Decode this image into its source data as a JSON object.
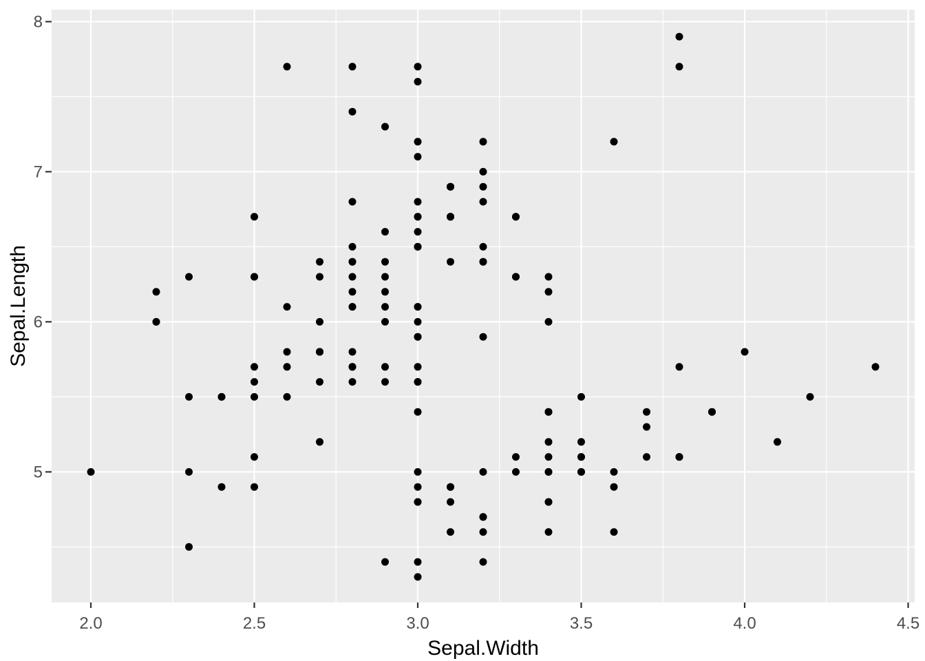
{
  "chart_data": {
    "type": "scatter",
    "title": "",
    "xlabel": "Sepal.Width",
    "ylabel": "Sepal.Length",
    "xlim": [
      1.88,
      4.52
    ],
    "ylim": [
      4.13,
      8.08
    ],
    "x_ticks": [
      2.0,
      2.5,
      3.0,
      3.5,
      4.0,
      4.5
    ],
    "x_tick_labels": [
      "2.0",
      "2.5",
      "3.0",
      "3.5",
      "4.0",
      "4.5"
    ],
    "y_ticks": [
      5,
      6,
      7,
      8
    ],
    "y_tick_labels": [
      "5",
      "6",
      "7",
      "8"
    ],
    "x_minor_ticks": [
      2.25,
      2.75,
      3.25,
      3.75,
      4.25
    ],
    "y_minor_ticks": [
      4.5,
      5.5,
      6.5,
      7.5
    ],
    "grid": true,
    "legend": false,
    "theme": {
      "panel_bg": "#EBEBEB",
      "grid_color": "#FFFFFF",
      "point_color": "#000000",
      "tick_mark_color": "#333333",
      "tick_label_color": "#4D4D4D",
      "axis_title_color": "#000000",
      "outer_bg": "#FFFFFF"
    },
    "points": [
      [
        3.5,
        5.1
      ],
      [
        3.0,
        4.9
      ],
      [
        3.2,
        4.7
      ],
      [
        3.1,
        4.6
      ],
      [
        3.6,
        5.0
      ],
      [
        3.9,
        5.4
      ],
      [
        3.4,
        4.6
      ],
      [
        3.4,
        5.0
      ],
      [
        2.9,
        4.4
      ],
      [
        3.1,
        4.9
      ],
      [
        3.7,
        5.4
      ],
      [
        3.4,
        4.8
      ],
      [
        3.0,
        4.8
      ],
      [
        3.0,
        4.3
      ],
      [
        4.0,
        5.8
      ],
      [
        4.4,
        5.7
      ],
      [
        3.9,
        5.4
      ],
      [
        3.5,
        5.1
      ],
      [
        3.8,
        5.7
      ],
      [
        3.8,
        5.1
      ],
      [
        3.4,
        5.4
      ],
      [
        3.7,
        5.1
      ],
      [
        3.6,
        4.6
      ],
      [
        3.3,
        5.1
      ],
      [
        3.4,
        4.8
      ],
      [
        3.0,
        5.0
      ],
      [
        3.4,
        5.0
      ],
      [
        3.5,
        5.2
      ],
      [
        3.4,
        5.2
      ],
      [
        3.2,
        4.7
      ],
      [
        3.1,
        4.8
      ],
      [
        3.4,
        5.4
      ],
      [
        4.1,
        5.2
      ],
      [
        4.2,
        5.5
      ],
      [
        3.1,
        4.9
      ],
      [
        3.2,
        5.0
      ],
      [
        3.5,
        5.5
      ],
      [
        3.6,
        4.9
      ],
      [
        3.0,
        4.4
      ],
      [
        3.4,
        5.1
      ],
      [
        3.5,
        5.0
      ],
      [
        2.3,
        4.5
      ],
      [
        3.2,
        4.4
      ],
      [
        3.5,
        5.0
      ],
      [
        3.8,
        5.1
      ],
      [
        3.0,
        4.8
      ],
      [
        3.8,
        5.1
      ],
      [
        3.2,
        4.6
      ],
      [
        3.7,
        5.3
      ],
      [
        3.3,
        5.0
      ],
      [
        3.2,
        7.0
      ],
      [
        3.2,
        6.4
      ],
      [
        3.1,
        6.9
      ],
      [
        2.3,
        5.5
      ],
      [
        2.8,
        6.5
      ],
      [
        2.8,
        5.7
      ],
      [
        3.3,
        6.3
      ],
      [
        2.4,
        4.9
      ],
      [
        2.9,
        6.6
      ],
      [
        2.7,
        5.2
      ],
      [
        2.0,
        5.0
      ],
      [
        3.0,
        5.9
      ],
      [
        2.2,
        6.0
      ],
      [
        2.9,
        6.1
      ],
      [
        2.9,
        5.6
      ],
      [
        3.1,
        6.7
      ],
      [
        3.0,
        5.6
      ],
      [
        2.7,
        5.8
      ],
      [
        2.2,
        6.2
      ],
      [
        2.5,
        5.6
      ],
      [
        3.2,
        5.9
      ],
      [
        2.8,
        6.1
      ],
      [
        2.5,
        6.3
      ],
      [
        2.8,
        6.1
      ],
      [
        2.9,
        6.4
      ],
      [
        3.0,
        6.6
      ],
      [
        2.8,
        6.8
      ],
      [
        3.0,
        6.7
      ],
      [
        2.9,
        6.0
      ],
      [
        2.6,
        5.7
      ],
      [
        2.4,
        5.5
      ],
      [
        2.4,
        5.5
      ],
      [
        2.7,
        5.8
      ],
      [
        2.7,
        6.0
      ],
      [
        3.0,
        5.4
      ],
      [
        3.4,
        6.0
      ],
      [
        3.1,
        6.7
      ],
      [
        2.3,
        6.3
      ],
      [
        3.0,
        5.6
      ],
      [
        2.5,
        5.5
      ],
      [
        2.6,
        5.5
      ],
      [
        3.0,
        6.1
      ],
      [
        2.6,
        5.8
      ],
      [
        2.3,
        5.0
      ],
      [
        2.7,
        5.6
      ],
      [
        3.0,
        5.7
      ],
      [
        2.9,
        5.7
      ],
      [
        2.9,
        6.2
      ],
      [
        2.5,
        5.1
      ],
      [
        2.8,
        5.7
      ],
      [
        3.3,
        6.3
      ],
      [
        2.7,
        5.8
      ],
      [
        3.0,
        7.1
      ],
      [
        2.9,
        6.3
      ],
      [
        3.0,
        6.5
      ],
      [
        3.0,
        7.6
      ],
      [
        2.5,
        4.9
      ],
      [
        2.9,
        7.3
      ],
      [
        2.5,
        6.7
      ],
      [
        3.6,
        7.2
      ],
      [
        3.2,
        6.5
      ],
      [
        2.7,
        6.4
      ],
      [
        3.0,
        6.8
      ],
      [
        2.5,
        5.7
      ],
      [
        2.8,
        5.8
      ],
      [
        3.2,
        6.4
      ],
      [
        3.0,
        6.5
      ],
      [
        3.8,
        7.7
      ],
      [
        2.6,
        7.7
      ],
      [
        2.2,
        6.0
      ],
      [
        3.2,
        6.9
      ],
      [
        2.8,
        5.6
      ],
      [
        2.8,
        7.7
      ],
      [
        2.7,
        6.3
      ],
      [
        3.3,
        6.7
      ],
      [
        3.2,
        7.2
      ],
      [
        2.8,
        6.2
      ],
      [
        3.0,
        6.1
      ],
      [
        2.8,
        6.4
      ],
      [
        3.0,
        7.2
      ],
      [
        2.8,
        7.4
      ],
      [
        3.8,
        7.9
      ],
      [
        2.8,
        6.4
      ],
      [
        2.8,
        6.3
      ],
      [
        2.6,
        6.1
      ],
      [
        3.0,
        7.7
      ],
      [
        3.4,
        6.3
      ],
      [
        3.1,
        6.4
      ],
      [
        3.0,
        6.0
      ],
      [
        3.1,
        6.9
      ],
      [
        3.1,
        6.7
      ],
      [
        3.1,
        6.9
      ],
      [
        2.7,
        5.8
      ],
      [
        3.2,
        6.8
      ],
      [
        3.3,
        6.7
      ],
      [
        3.0,
        6.7
      ],
      [
        2.5,
        6.3
      ],
      [
        3.0,
        6.5
      ],
      [
        3.4,
        6.2
      ],
      [
        3.0,
        5.9
      ]
    ]
  }
}
